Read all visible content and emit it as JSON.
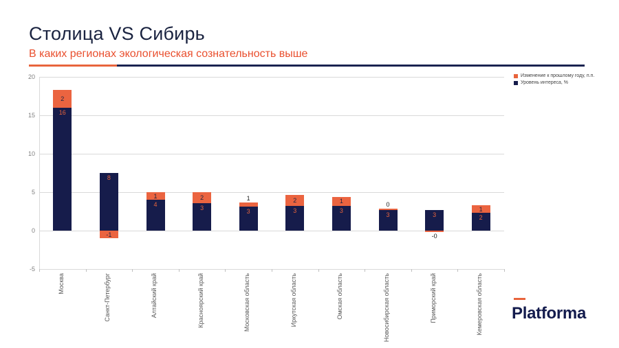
{
  "header": {
    "title": "Столица VS Сибирь",
    "subtitle": "В каких регионах экологическая сознательность выше"
  },
  "legend": [
    {
      "label": "Изменение к прошлому году, п.п.",
      "color": "#E8643C"
    },
    {
      "label": "Уровень интереса, %",
      "color": "#161C4B"
    }
  ],
  "logo": {
    "text": "Platforma",
    "accent_color": "#E8643C",
    "text_color": "#131B4D"
  },
  "colors": {
    "title": "#1A2340",
    "subtitle": "#E94F2E",
    "bar_navy": "#161C4B",
    "bar_orange": "#EB6440",
    "grid": "#D9D9D9",
    "axis_text": "#7F7F7F",
    "category_text": "#595959"
  },
  "chart_data": {
    "type": "bar",
    "stacked": true,
    "title": "Столица VS Сибирь",
    "subtitle": "В каких регионах экологическая сознательность выше",
    "categories": [
      "Москва",
      "Санкт-Петербург",
      "Алтайский край",
      "Красноярский край",
      "Московская область",
      "Иркутская область",
      "Омская область",
      "Новосибирская область",
      "Приморский край",
      "Кемеровская область"
    ],
    "series": [
      {
        "name": "Уровень интереса, %",
        "color": "#161C4B",
        "values": [
          16,
          8,
          4,
          3,
          3,
          3,
          3,
          3,
          3,
          2
        ],
        "labels": [
          "16",
          "8",
          "4",
          "3",
          "3",
          "3",
          "3",
          "3",
          "3",
          "2"
        ],
        "render_values": [
          16,
          7.5,
          4,
          3.6,
          3.1,
          3.2,
          3.2,
          2.7,
          2.7,
          2.3
        ]
      },
      {
        "name": "Изменение к прошлому году, п.п.",
        "color": "#EB6440",
        "values": [
          2,
          -1,
          1,
          2,
          1,
          2,
          1,
          0,
          0,
          1
        ],
        "labels": [
          "2",
          "-1",
          "1",
          "2",
          "1",
          "2",
          "1",
          "0",
          "-0",
          "1"
        ],
        "render_values": [
          2.3,
          -1,
          1,
          1.4,
          0.6,
          1.4,
          1.2,
          0.12,
          -0.2,
          1.0
        ]
      }
    ],
    "y_ticks": [
      20,
      15,
      10,
      5,
      0,
      -5
    ],
    "ylim": [
      -5,
      20
    ],
    "grid": true,
    "legend_position": "top-right",
    "label_colors": {
      "on_navy": "#E8643C",
      "on_orange": "#1A2340",
      "outside": "#1a1a1a"
    }
  }
}
